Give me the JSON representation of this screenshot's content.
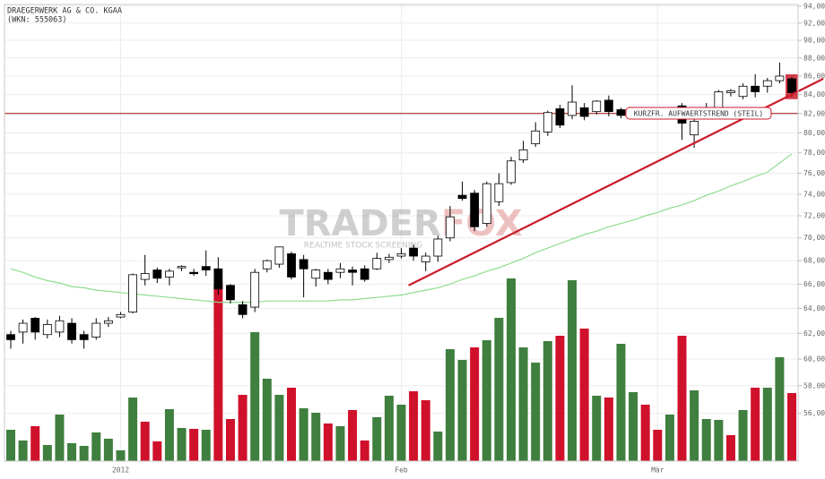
{
  "chart_data": {
    "type": "candlestick",
    "title": "DRAEGERWERK AG & CO. KGAA",
    "subtitle": "(WKN: 555063)",
    "watermark": {
      "brand": [
        "TRADER",
        "FOX"
      ],
      "tagline": "REALTIME STOCK SCREENING"
    },
    "categories": [
      null,
      null,
      null,
      null,
      null,
      null,
      null,
      null,
      null,
      "2012",
      null,
      null,
      null,
      null,
      null,
      null,
      null,
      null,
      null,
      null,
      null,
      null,
      null,
      null,
      null,
      null,
      null,
      null,
      null,
      null,
      null,
      null,
      "Feb",
      null,
      null,
      null,
      null,
      null,
      null,
      null,
      null,
      null,
      null,
      null,
      null,
      null,
      null,
      null,
      null,
      null,
      null,
      null,
      null,
      "Mär",
      null,
      null,
      null,
      null,
      null,
      null,
      null,
      null,
      null,
      null,
      null
    ],
    "open": [
      61.9,
      62.1,
      63.2,
      61.9,
      62.1,
      62.8,
      61.9,
      61.7,
      62.8,
      63.3,
      63.7,
      66.4,
      67.2,
      66.6,
      67.4,
      67.0,
      67.5,
      67.3,
      65.9,
      64.3,
      64.1,
      67.3,
      67.7,
      68.6,
      68.1,
      66.5,
      67.0,
      67.0,
      67.2,
      67.3,
      67.3,
      68.1,
      68.4,
      69.1,
      67.9,
      68.4,
      70.0,
      73.9,
      74.1,
      71.3,
      73.3,
      75.1,
      77.3,
      78.9,
      80.1,
      82.5,
      81.8,
      82.6,
      82.2,
      83.4,
      82.4,
      82.0,
      82.0,
      82.2,
      82.3,
      82.8,
      79.8,
      82.2,
      82.6,
      84.2,
      83.8,
      84.9,
      84.9,
      85.5,
      85.7
    ],
    "high": [
      62.2,
      63.1,
      63.3,
      63.1,
      63.4,
      63.2,
      62.2,
      63.2,
      63.3,
      63.7,
      66.9,
      68.5,
      67.4,
      67.3,
      67.6,
      67.3,
      68.9,
      68.3,
      66.0,
      64.6,
      67.3,
      68.1,
      69.2,
      68.8,
      68.5,
      67.3,
      67.3,
      67.8,
      67.5,
      67.6,
      68.7,
      68.6,
      69.1,
      69.4,
      68.7,
      70.2,
      72.9,
      75.2,
      74.4,
      75.2,
      76.0,
      77.6,
      79.2,
      81.1,
      82.3,
      82.9,
      85.0,
      83.1,
      83.4,
      83.9,
      82.6,
      82.5,
      82.4,
      82.5,
      82.6,
      83.1,
      81.7,
      83.1,
      84.5,
      84.6,
      85.2,
      86.2,
      85.8,
      87.5,
      85.9
    ],
    "low": [
      60.8,
      61.2,
      61.5,
      61.6,
      61.7,
      61.2,
      60.8,
      61.5,
      62.5,
      63.2,
      63.6,
      65.9,
      66.1,
      65.9,
      67.1,
      66.7,
      66.7,
      65.1,
      64.4,
      63.2,
      63.7,
      67.0,
      67.4,
      66.4,
      64.9,
      65.8,
      66.0,
      66.5,
      65.9,
      66.2,
      67.2,
      67.8,
      68.2,
      68.0,
      67.1,
      67.9,
      69.7,
      73.4,
      70.6,
      71.0,
      72.9,
      74.9,
      77.0,
      78.6,
      79.7,
      80.5,
      81.4,
      81.3,
      81.9,
      81.7,
      81.5,
      81.8,
      81.8,
      81.6,
      82.0,
      79.3,
      78.5,
      82.0,
      82.4,
      83.8,
      83.5,
      83.7,
      84.2,
      85.2,
      83.8
    ],
    "close": [
      61.5,
      62.8,
      62.1,
      62.7,
      63.0,
      61.5,
      61.5,
      62.8,
      63.0,
      63.5,
      66.8,
      66.9,
      66.5,
      67.1,
      67.5,
      66.9,
      67.2,
      65.6,
      64.7,
      63.5,
      67.0,
      68.0,
      69.2,
      66.6,
      67.3,
      67.2,
      66.4,
      67.3,
      67.0,
      66.4,
      68.2,
      68.3,
      68.6,
      68.4,
      68.4,
      69.9,
      71.9,
      73.6,
      71.0,
      75.0,
      75.0,
      77.2,
      78.3,
      80.2,
      82.1,
      80.8,
      83.2,
      81.7,
      83.3,
      82.2,
      81.8,
      82.3,
      82.2,
      82.0,
      82.4,
      81.0,
      81.2,
      82.5,
      84.3,
      84.4,
      84.9,
      84.3,
      85.5,
      86.0,
      84.2
    ],
    "up_color": "#ffffff",
    "down_color": "#000000",
    "highlight_color": "#cc1b2b",
    "volume": [
      35,
      23,
      39,
      18,
      52,
      20,
      17,
      32,
      25,
      12,
      71,
      44,
      22,
      58,
      37,
      36,
      35,
      198,
      47,
      74,
      144,
      92,
      74,
      82,
      59,
      54,
      42,
      39,
      57,
      23,
      49,
      73,
      63,
      78,
      68,
      33,
      125,
      113,
      127,
      135,
      160,
      204,
      127,
      110,
      134,
      140,
      202,
      148,
      73,
      71,
      131,
      77,
      63,
      35,
      52,
      140,
      79,
      47,
      46,
      29,
      57,
      82,
      82,
      116,
      76
    ],
    "volume_colors": [
      "#3f7f3f",
      "#3f7f3f",
      "#d0112b",
      "#3f7f3f",
      "#3f7f3f",
      "#3f7f3f",
      "#3f7f3f",
      "#3f7f3f",
      "#3f7f3f",
      "#3f7f3f",
      "#3f7f3f",
      "#d0112b",
      "#d0112b",
      "#3f7f3f",
      "#3f7f3f",
      "#d0112b",
      "#3f7f3f",
      "#d0112b",
      "#d0112b",
      "#d0112b",
      "#3f7f3f",
      "#3f7f3f",
      "#3f7f3f",
      "#d0112b",
      "#3f7f3f",
      "#3f7f3f",
      "#d0112b",
      "#3f7f3f",
      "#d0112b",
      "#d0112b",
      "#3f7f3f",
      "#3f7f3f",
      "#3f7f3f",
      "#d0112b",
      "#d0112b",
      "#3f7f3f",
      "#3f7f3f",
      "#3f7f3f",
      "#d0112b",
      "#3f7f3f",
      "#3f7f3f",
      "#3f7f3f",
      "#3f7f3f",
      "#3f7f3f",
      "#3f7f3f",
      "#d0112b",
      "#3f7f3f",
      "#d0112b",
      "#3f7f3f",
      "#d0112b",
      "#3f7f3f",
      "#3f7f3f",
      "#d0112b",
      "#d0112b",
      "#3f7f3f",
      "#d0112b",
      "#3f7f3f",
      "#3f7f3f",
      "#3f7f3f",
      "#d0112b",
      "#3f7f3f",
      "#d0112b",
      "#3f7f3f",
      "#3f7f3f",
      "#d0112b"
    ],
    "y2lim": [
      0,
      510
    ],
    "moving_average": {
      "color": "#8fdc8f",
      "values": [
        67.3,
        67.0,
        66.6,
        66.3,
        66.1,
        65.8,
        65.7,
        65.5,
        65.4,
        65.3,
        65.2,
        65.1,
        65.0,
        64.9,
        64.8,
        64.7,
        64.6,
        64.5,
        64.5,
        64.5,
        64.5,
        64.6,
        64.6,
        64.6,
        64.6,
        64.6,
        64.6,
        64.7,
        64.7,
        64.8,
        64.9,
        65.0,
        65.1,
        65.3,
        65.5,
        65.7,
        66.0,
        66.4,
        66.7,
        67.1,
        67.4,
        67.8,
        68.2,
        68.7,
        69.1,
        69.5,
        69.9,
        70.3,
        70.6,
        71.0,
        71.3,
        71.6,
        72.0,
        72.3,
        72.7,
        73.0,
        73.4,
        73.9,
        74.3,
        74.8,
        75.2,
        75.7,
        76.1,
        77.0,
        77.9
      ]
    },
    "support_line": {
      "value": 82,
      "color": "#a01010"
    },
    "trend_line": {
      "color": "#cc1b2b",
      "x": [
        32.6,
        66.6
      ],
      "values": [
        65.9,
        85.7
      ],
      "label": "KURZFR. AUFWAERTSTREND (STEIL)"
    },
    "ylim": [
      52.7,
      94.2
    ],
    "log_scale": true,
    "grid": true,
    "yticks": [
      {
        "value": 56,
        "label": "56,00"
      },
      {
        "value": 58,
        "label": "58,00"
      },
      {
        "value": 60,
        "label": "60,00"
      },
      {
        "value": 62,
        "label": "62,00"
      },
      {
        "value": 64,
        "label": "64,00"
      },
      {
        "value": 66,
        "label": "66,00"
      },
      {
        "value": 68,
        "label": "68,00"
      },
      {
        "value": 70,
        "label": "70,00"
      },
      {
        "value": 72,
        "label": "72,00"
      },
      {
        "value": 74,
        "label": "74,00"
      },
      {
        "value": 76,
        "label": "76,00"
      },
      {
        "value": 78,
        "label": "78,00"
      },
      {
        "value": 80,
        "label": "80,00"
      },
      {
        "value": 82,
        "label": "82,00"
      },
      {
        "value": 84,
        "label": "84,00"
      },
      {
        "value": 86,
        "label": "86,00"
      },
      {
        "value": 88,
        "label": "88,00"
      },
      {
        "value": 90,
        "label": "90,00"
      },
      {
        "value": 92,
        "label": "92,00"
      },
      {
        "value": 94,
        "label": "94,00"
      }
    ]
  }
}
